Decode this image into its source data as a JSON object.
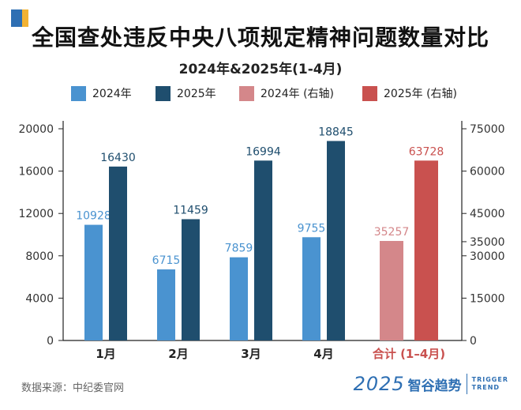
{
  "title": "全国查处违反中央八项规定精神问题数量对比",
  "subtitle": "2024年&2025年(1-4月)",
  "source": "数据来源：中纪委官网",
  "brand": {
    "year": "2025",
    "name": "智谷趋势",
    "en_line1": "TRIGGER",
    "en_line2": "TREND"
  },
  "colors": {
    "s2024": "#4a93d0",
    "s2025": "#1f4e6e",
    "s2024r": "#d4878a",
    "s2025r": "#c9514f",
    "total_label": "#c9514f",
    "axis": "#222222",
    "tick_text": "#333333",
    "corner_blue": "#2e6fb3",
    "corner_yellow": "#f2b233"
  },
  "legend": [
    {
      "label": "2024年",
      "color": "#4a93d0"
    },
    {
      "label": "2025年",
      "color": "#1f4e6e"
    },
    {
      "label": "2024年 (右轴)",
      "color": "#d4878a"
    },
    {
      "label": "2025年 (右轴)",
      "color": "#c9514f"
    }
  ],
  "chart_data": {
    "type": "bar",
    "categories": [
      "1月",
      "2月",
      "3月",
      "4月",
      "合计 (1–4月)"
    ],
    "series": [
      {
        "name": "2024年",
        "axis": "left",
        "values": [
          10928,
          6715,
          7859,
          9755,
          null
        ]
      },
      {
        "name": "2025年",
        "axis": "left",
        "values": [
          16430,
          11459,
          16994,
          18845,
          null
        ]
      },
      {
        "name": "2024年 (右轴)",
        "axis": "right",
        "values": [
          null,
          null,
          null,
          null,
          35257
        ]
      },
      {
        "name": "2025年 (右轴)",
        "axis": "right",
        "values": [
          null,
          null,
          null,
          null,
          63728
        ]
      }
    ],
    "y_left": {
      "min": 0,
      "max": 20000,
      "ticks": [
        0,
        4000,
        8000,
        12000,
        16000,
        20000
      ]
    },
    "y_right": {
      "min": 0,
      "max": 75000,
      "ticks": [
        0,
        15000,
        30000,
        35000,
        45000,
        60000,
        75000
      ]
    },
    "grid": false,
    "legend_position": "top"
  }
}
